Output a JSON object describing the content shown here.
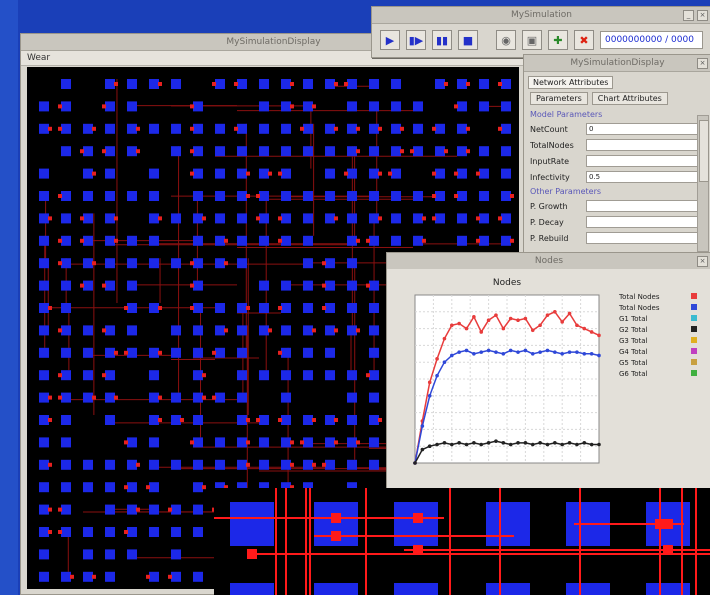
{
  "display": {
    "title": "MySimulationDisplay",
    "menu_label": "Wear"
  },
  "controller": {
    "title": "MySimulation",
    "time_display": "0000000000 / 0000",
    "icons": [
      "play-icon",
      "step-icon",
      "pause-icon",
      "stop-icon",
      "record-icon",
      "camera-icon",
      "inspect-icon",
      "close-icon"
    ]
  },
  "options": {
    "title": "MySimulationDisplay",
    "tabs": [
      "Network Attributes"
    ],
    "subtabs": [
      "Parameters",
      "Chart Attributes"
    ],
    "section1": "Model Parameters",
    "fields": [
      {
        "label": "NetCount",
        "value": "0"
      },
      {
        "label": "TotalNodes",
        "value": ""
      },
      {
        "label": "InputRate",
        "value": ""
      },
      {
        "label": "Infectivity",
        "value": "0.5"
      }
    ],
    "section2": "Other Parameters",
    "fields2": [
      {
        "label": "P. Growth",
        "value": ""
      },
      {
        "label": "P. Decay",
        "value": ""
      },
      {
        "label": "P. Rebuild",
        "value": ""
      }
    ]
  },
  "chart_window": {
    "title": "Nodes",
    "colors": {
      "red": "#e83c3c",
      "blue": "#2f48d8",
      "black": "#222222"
    }
  },
  "chart_data": {
    "type": "line",
    "title": "Nodes",
    "xlabel": "",
    "ylabel": "",
    "xlim": [
      0,
      100
    ],
    "ylim": [
      0,
      100
    ],
    "grid": true,
    "legend_placement": "right",
    "legend": [
      "Total Nodes",
      "Total Nodes",
      "G1 Total",
      "G2 Total",
      "G3 Total",
      "G4 Total",
      "G5 Total",
      "G6 Total"
    ],
    "series": [
      {
        "name": "Total Nodes",
        "color": "#e83c3c",
        "x": [
          0,
          4,
          8,
          12,
          16,
          20,
          24,
          28,
          32,
          36,
          40,
          44,
          48,
          52,
          56,
          60,
          64,
          68,
          72,
          76,
          80,
          84,
          88,
          92,
          96,
          100
        ],
        "y": [
          0,
          25,
          48,
          62,
          74,
          82,
          83,
          80,
          87,
          78,
          85,
          88,
          80,
          86,
          85,
          86,
          79,
          82,
          88,
          90,
          84,
          89,
          82,
          80,
          78,
          76
        ]
      },
      {
        "name": "Total Nodes",
        "color": "#2f48d8",
        "x": [
          0,
          4,
          8,
          12,
          16,
          20,
          24,
          28,
          32,
          36,
          40,
          44,
          48,
          52,
          56,
          60,
          64,
          68,
          72,
          76,
          80,
          84,
          88,
          92,
          96,
          100
        ],
        "y": [
          0,
          22,
          40,
          52,
          60,
          64,
          66,
          67,
          65,
          66,
          67,
          66,
          65,
          67,
          66,
          67,
          65,
          66,
          67,
          66,
          65,
          66,
          66,
          65,
          65,
          64
        ]
      },
      {
        "name": "G1 Total",
        "color": "#222222",
        "x": [
          0,
          4,
          8,
          12,
          16,
          20,
          24,
          28,
          32,
          36,
          40,
          44,
          48,
          52,
          56,
          60,
          64,
          68,
          72,
          76,
          80,
          84,
          88,
          92,
          96,
          100
        ],
        "y": [
          0,
          8,
          10,
          11,
          12,
          11,
          12,
          11,
          12,
          11,
          12,
          13,
          12,
          11,
          12,
          12,
          11,
          12,
          11,
          12,
          11,
          12,
          11,
          12,
          11,
          11
        ]
      }
    ]
  }
}
